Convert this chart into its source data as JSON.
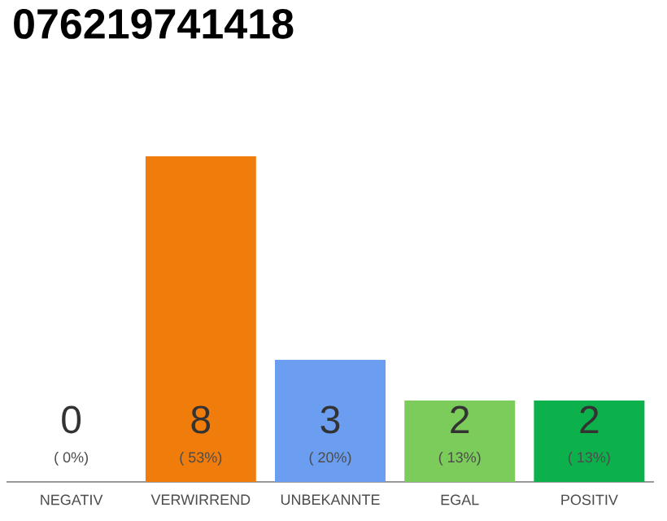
{
  "chart_data": {
    "type": "bar",
    "title": "076219741418",
    "categories": [
      "NEGATIV",
      "VERWIRREND",
      "UNBEKANNTE",
      "EGAL",
      "POSITIV"
    ],
    "values": [
      0,
      8,
      3,
      2,
      2
    ],
    "colors": [
      "#9e9e9e",
      "#f07c0c",
      "#6b9ef0",
      "#7ccc5c",
      "#0db14b"
    ],
    "data_labels": true,
    "annotations": [
      {
        "text": "( 0%)",
        "x": "NEGATIV",
        "y": 0
      },
      {
        "text": "( 53%)",
        "x": "VERWIRREND",
        "y": 0
      },
      {
        "text": "( 20%)",
        "x": "UNBEKANNTE",
        "y": 0
      },
      {
        "text": "( 13%)",
        "x": "EGAL",
        "y": 0
      },
      {
        "text": "( 13%)",
        "x": "POSITIV",
        "y": 0
      }
    ],
    "grid": false
  }
}
